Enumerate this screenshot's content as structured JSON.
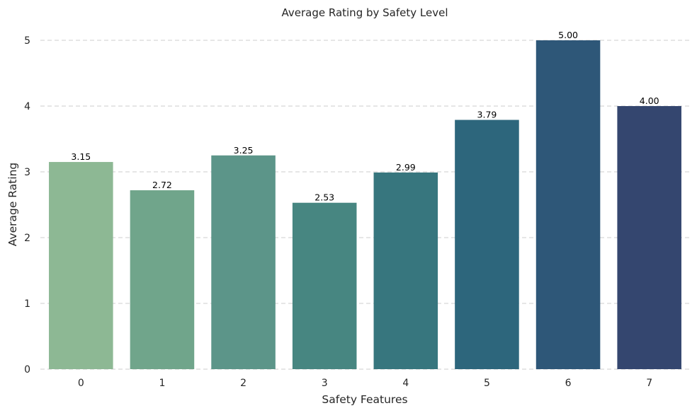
{
  "chart_data": {
    "type": "bar",
    "title": "Average Rating by Safety Level",
    "xlabel": "Safety Features",
    "ylabel": "Average Rating",
    "categories": [
      "0",
      "1",
      "2",
      "3",
      "4",
      "5",
      "6",
      "7"
    ],
    "values": [
      3.15,
      2.72,
      3.25,
      2.53,
      2.99,
      3.79,
      5.0,
      4.0
    ],
    "value_labels": [
      "3.15",
      "2.72",
      "3.25",
      "2.53",
      "2.99",
      "3.79",
      "5.00",
      "4.00"
    ],
    "ylim": [
      0,
      5.2
    ],
    "yticks": [
      "0",
      "1",
      "2",
      "3",
      "4",
      "5"
    ],
    "grid": "y-dashed",
    "colors": [
      "#8db894",
      "#70a58b",
      "#5c9589",
      "#478681",
      "#37767e",
      "#2d667c",
      "#2e5778",
      "#34466f"
    ]
  }
}
